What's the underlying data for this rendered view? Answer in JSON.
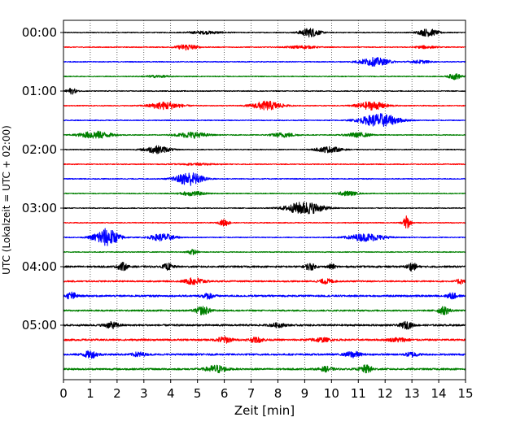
{
  "chart_data": {
    "type": "line",
    "subtype": "helicorder",
    "title": "",
    "xlabel": "Zeit  [min]",
    "ylabel": "UTC (Lokalzeit = UTC + 02:00)",
    "xlim": [
      0,
      15
    ],
    "x_ticks": [
      0,
      1,
      2,
      3,
      4,
      5,
      6,
      7,
      8,
      9,
      10,
      11,
      12,
      13,
      14,
      15
    ],
    "x_tick_labels": [
      "0",
      "1",
      "2",
      "3",
      "4",
      "5",
      "6",
      "7",
      "8",
      "9",
      "10",
      "11",
      "12",
      "13",
      "14",
      "15"
    ],
    "y_tick_labels": [
      "00:00",
      "01:00",
      "02:00",
      "03:00",
      "04:00",
      "05:00"
    ],
    "y_tick_rows": [
      0,
      4,
      8,
      12,
      16,
      20
    ],
    "row_minutes": 15,
    "row_count": 24,
    "grid": "vertical-dotted",
    "legend": "none",
    "colors": [
      "#000000",
      "#ff0000",
      "#0000ff",
      "#008000"
    ],
    "series": [
      {
        "row": 0,
        "start": "00:00",
        "color": "#000000",
        "noise": 0.06,
        "events": [
          {
            "t": 5.3,
            "a": 0.18,
            "w": 1.4
          },
          {
            "t": 9.2,
            "a": 0.6,
            "w": 0.8
          },
          {
            "t": 13.6,
            "a": 0.5,
            "w": 0.8
          }
        ]
      },
      {
        "row": 1,
        "start": "00:15",
        "color": "#ff0000",
        "noise": 0.06,
        "events": [
          {
            "t": 4.6,
            "a": 0.4,
            "w": 0.8
          },
          {
            "t": 8.9,
            "a": 0.18,
            "w": 1.2
          },
          {
            "t": 13.5,
            "a": 0.18,
            "w": 0.8
          }
        ]
      },
      {
        "row": 2,
        "start": "00:30",
        "color": "#0000ff",
        "noise": 0.06,
        "events": [
          {
            "t": 11.6,
            "a": 0.55,
            "w": 1.2
          },
          {
            "t": 13.3,
            "a": 0.2,
            "w": 0.8
          }
        ]
      },
      {
        "row": 3,
        "start": "00:45",
        "color": "#008000",
        "noise": 0.06,
        "events": [
          {
            "t": 3.5,
            "a": 0.14,
            "w": 1.0
          },
          {
            "t": 14.6,
            "a": 0.4,
            "w": 0.5
          }
        ]
      },
      {
        "row": 4,
        "start": "01:00",
        "color": "#000000",
        "noise": 0.06,
        "events": [
          {
            "t": 0.3,
            "a": 0.4,
            "w": 0.4
          }
        ]
      },
      {
        "row": 5,
        "start": "01:15",
        "color": "#ff0000",
        "noise": 0.06,
        "events": [
          {
            "t": 3.8,
            "a": 0.5,
            "w": 1.3
          },
          {
            "t": 7.6,
            "a": 0.6,
            "w": 1.2
          },
          {
            "t": 11.5,
            "a": 0.55,
            "w": 1.2
          }
        ]
      },
      {
        "row": 6,
        "start": "01:30",
        "color": "#0000ff",
        "noise": 0.06,
        "events": [
          {
            "t": 11.8,
            "a": 0.9,
            "w": 1.5
          }
        ]
      },
      {
        "row": 7,
        "start": "01:45",
        "color": "#008000",
        "noise": 0.06,
        "events": [
          {
            "t": 1.2,
            "a": 0.5,
            "w": 1.3
          },
          {
            "t": 4.8,
            "a": 0.4,
            "w": 1.2
          },
          {
            "t": 8.2,
            "a": 0.3,
            "w": 1.0
          },
          {
            "t": 11.0,
            "a": 0.3,
            "w": 1.0
          }
        ]
      },
      {
        "row": 8,
        "start": "02:00",
        "color": "#000000",
        "noise": 0.06,
        "events": [
          {
            "t": 3.5,
            "a": 0.5,
            "w": 1.0
          },
          {
            "t": 9.9,
            "a": 0.4,
            "w": 1.0
          }
        ]
      },
      {
        "row": 9,
        "start": "02:15",
        "color": "#ff0000",
        "noise": 0.06,
        "events": [
          {
            "t": 5.0,
            "a": 0.1,
            "w": 1.5
          }
        ]
      },
      {
        "row": 10,
        "start": "02:30",
        "color": "#0000ff",
        "noise": 0.06,
        "events": [
          {
            "t": 4.7,
            "a": 0.9,
            "w": 1.1
          }
        ]
      },
      {
        "row": 11,
        "start": "02:45",
        "color": "#008000",
        "noise": 0.06,
        "events": [
          {
            "t": 4.8,
            "a": 0.3,
            "w": 1.0
          },
          {
            "t": 10.6,
            "a": 0.3,
            "w": 0.8
          }
        ]
      },
      {
        "row": 12,
        "start": "03:00",
        "color": "#000000",
        "noise": 0.06,
        "events": [
          {
            "t": 9.0,
            "a": 0.85,
            "w": 1.5
          }
        ]
      },
      {
        "row": 13,
        "start": "03:15",
        "color": "#ff0000",
        "noise": 0.06,
        "events": [
          {
            "t": 6.0,
            "a": 0.45,
            "w": 0.4
          },
          {
            "t": 12.8,
            "a": 0.9,
            "w": 0.3
          }
        ]
      },
      {
        "row": 14,
        "start": "03:30",
        "color": "#0000ff",
        "noise": 0.06,
        "events": [
          {
            "t": 1.6,
            "a": 1.2,
            "w": 1.0
          },
          {
            "t": 3.7,
            "a": 0.5,
            "w": 1.0
          },
          {
            "t": 11.3,
            "a": 0.5,
            "w": 1.5
          }
        ]
      },
      {
        "row": 15,
        "start": "03:45",
        "color": "#008000",
        "noise": 0.06,
        "events": [
          {
            "t": 4.8,
            "a": 0.35,
            "w": 0.4
          }
        ]
      },
      {
        "row": 16,
        "start": "04:00",
        "color": "#000000",
        "noise": 0.12,
        "events": [
          {
            "t": 2.2,
            "a": 0.5,
            "w": 0.4
          },
          {
            "t": 3.9,
            "a": 0.4,
            "w": 0.4
          },
          {
            "t": 9.2,
            "a": 0.45,
            "w": 0.4
          },
          {
            "t": 10.0,
            "a": 0.3,
            "w": 0.3
          },
          {
            "t": 13.0,
            "a": 0.5,
            "w": 0.4
          }
        ]
      },
      {
        "row": 17,
        "start": "04:15",
        "color": "#ff0000",
        "noise": 0.1,
        "events": [
          {
            "t": 4.9,
            "a": 0.45,
            "w": 0.8
          },
          {
            "t": 9.8,
            "a": 0.3,
            "w": 0.6
          },
          {
            "t": 14.8,
            "a": 0.35,
            "w": 0.3
          }
        ]
      },
      {
        "row": 18,
        "start": "04:30",
        "color": "#0000ff",
        "noise": 0.12,
        "events": [
          {
            "t": 0.3,
            "a": 0.5,
            "w": 0.4
          },
          {
            "t": 5.4,
            "a": 0.35,
            "w": 0.5
          },
          {
            "t": 14.5,
            "a": 0.4,
            "w": 0.4
          }
        ]
      },
      {
        "row": 19,
        "start": "04:45",
        "color": "#008000",
        "noise": 0.1,
        "events": [
          {
            "t": 5.2,
            "a": 0.55,
            "w": 0.6
          },
          {
            "t": 14.2,
            "a": 0.5,
            "w": 0.5
          }
        ]
      },
      {
        "row": 20,
        "start": "05:00",
        "color": "#000000",
        "noise": 0.12,
        "events": [
          {
            "t": 1.8,
            "a": 0.4,
            "w": 0.6
          },
          {
            "t": 8.0,
            "a": 0.25,
            "w": 0.6
          },
          {
            "t": 12.8,
            "a": 0.45,
            "w": 0.5
          }
        ]
      },
      {
        "row": 21,
        "start": "05:15",
        "color": "#ff0000",
        "noise": 0.12,
        "events": [
          {
            "t": 6.0,
            "a": 0.4,
            "w": 0.6
          },
          {
            "t": 7.2,
            "a": 0.3,
            "w": 0.6
          },
          {
            "t": 9.6,
            "a": 0.25,
            "w": 0.8
          },
          {
            "t": 12.5,
            "a": 0.25,
            "w": 0.8
          }
        ]
      },
      {
        "row": 22,
        "start": "05:30",
        "color": "#0000ff",
        "noise": 0.12,
        "events": [
          {
            "t": 1.0,
            "a": 0.45,
            "w": 0.6
          },
          {
            "t": 2.8,
            "a": 0.3,
            "w": 0.5
          },
          {
            "t": 10.8,
            "a": 0.4,
            "w": 0.6
          },
          {
            "t": 13.0,
            "a": 0.3,
            "w": 0.5
          }
        ]
      },
      {
        "row": 23,
        "start": "05:45",
        "color": "#008000",
        "noise": 0.12,
        "events": [
          {
            "t": 5.7,
            "a": 0.5,
            "w": 0.8
          },
          {
            "t": 9.8,
            "a": 0.3,
            "w": 0.5
          },
          {
            "t": 11.3,
            "a": 0.5,
            "w": 0.5
          }
        ]
      }
    ]
  }
}
